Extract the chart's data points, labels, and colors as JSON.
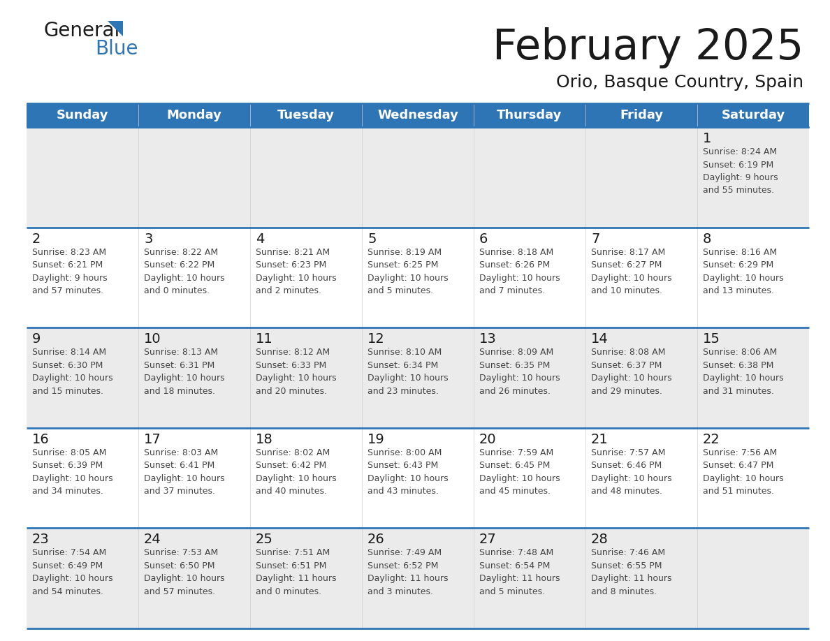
{
  "title": "February 2025",
  "subtitle": "Orio, Basque Country, Spain",
  "header_bg": "#2E75B6",
  "header_text": "#FFFFFF",
  "cell_bg_light": "#EBEBEB",
  "cell_bg_white": "#FFFFFF",
  "grid_line_color": "#2E75B6",
  "day_headers": [
    "Sunday",
    "Monday",
    "Tuesday",
    "Wednesday",
    "Thursday",
    "Friday",
    "Saturday"
  ],
  "title_color": "#1a1a1a",
  "subtitle_color": "#1a1a1a",
  "cell_text_color": "#444444",
  "day_num_color": "#1a1a1a",
  "logo_general_color": "#1a1a1a",
  "logo_blue_color": "#2E75B6",
  "logo_triangle_color": "#2E75B6",
  "calendar_data": [
    [
      null,
      null,
      null,
      null,
      null,
      null,
      {
        "day": 1,
        "sunrise": "8:24 AM",
        "sunset": "6:19 PM",
        "daylight": "9 hours\nand 55 minutes."
      }
    ],
    [
      {
        "day": 2,
        "sunrise": "8:23 AM",
        "sunset": "6:21 PM",
        "daylight": "9 hours\nand 57 minutes."
      },
      {
        "day": 3,
        "sunrise": "8:22 AM",
        "sunset": "6:22 PM",
        "daylight": "10 hours\nand 0 minutes."
      },
      {
        "day": 4,
        "sunrise": "8:21 AM",
        "sunset": "6:23 PM",
        "daylight": "10 hours\nand 2 minutes."
      },
      {
        "day": 5,
        "sunrise": "8:19 AM",
        "sunset": "6:25 PM",
        "daylight": "10 hours\nand 5 minutes."
      },
      {
        "day": 6,
        "sunrise": "8:18 AM",
        "sunset": "6:26 PM",
        "daylight": "10 hours\nand 7 minutes."
      },
      {
        "day": 7,
        "sunrise": "8:17 AM",
        "sunset": "6:27 PM",
        "daylight": "10 hours\nand 10 minutes."
      },
      {
        "day": 8,
        "sunrise": "8:16 AM",
        "sunset": "6:29 PM",
        "daylight": "10 hours\nand 13 minutes."
      }
    ],
    [
      {
        "day": 9,
        "sunrise": "8:14 AM",
        "sunset": "6:30 PM",
        "daylight": "10 hours\nand 15 minutes."
      },
      {
        "day": 10,
        "sunrise": "8:13 AM",
        "sunset": "6:31 PM",
        "daylight": "10 hours\nand 18 minutes."
      },
      {
        "day": 11,
        "sunrise": "8:12 AM",
        "sunset": "6:33 PM",
        "daylight": "10 hours\nand 20 minutes."
      },
      {
        "day": 12,
        "sunrise": "8:10 AM",
        "sunset": "6:34 PM",
        "daylight": "10 hours\nand 23 minutes."
      },
      {
        "day": 13,
        "sunrise": "8:09 AM",
        "sunset": "6:35 PM",
        "daylight": "10 hours\nand 26 minutes."
      },
      {
        "day": 14,
        "sunrise": "8:08 AM",
        "sunset": "6:37 PM",
        "daylight": "10 hours\nand 29 minutes."
      },
      {
        "day": 15,
        "sunrise": "8:06 AM",
        "sunset": "6:38 PM",
        "daylight": "10 hours\nand 31 minutes."
      }
    ],
    [
      {
        "day": 16,
        "sunrise": "8:05 AM",
        "sunset": "6:39 PM",
        "daylight": "10 hours\nand 34 minutes."
      },
      {
        "day": 17,
        "sunrise": "8:03 AM",
        "sunset": "6:41 PM",
        "daylight": "10 hours\nand 37 minutes."
      },
      {
        "day": 18,
        "sunrise": "8:02 AM",
        "sunset": "6:42 PM",
        "daylight": "10 hours\nand 40 minutes."
      },
      {
        "day": 19,
        "sunrise": "8:00 AM",
        "sunset": "6:43 PM",
        "daylight": "10 hours\nand 43 minutes."
      },
      {
        "day": 20,
        "sunrise": "7:59 AM",
        "sunset": "6:45 PM",
        "daylight": "10 hours\nand 45 minutes."
      },
      {
        "day": 21,
        "sunrise": "7:57 AM",
        "sunset": "6:46 PM",
        "daylight": "10 hours\nand 48 minutes."
      },
      {
        "day": 22,
        "sunrise": "7:56 AM",
        "sunset": "6:47 PM",
        "daylight": "10 hours\nand 51 minutes."
      }
    ],
    [
      {
        "day": 23,
        "sunrise": "7:54 AM",
        "sunset": "6:49 PM",
        "daylight": "10 hours\nand 54 minutes."
      },
      {
        "day": 24,
        "sunrise": "7:53 AM",
        "sunset": "6:50 PM",
        "daylight": "10 hours\nand 57 minutes."
      },
      {
        "day": 25,
        "sunrise": "7:51 AM",
        "sunset": "6:51 PM",
        "daylight": "11 hours\nand 0 minutes."
      },
      {
        "day": 26,
        "sunrise": "7:49 AM",
        "sunset": "6:52 PM",
        "daylight": "11 hours\nand 3 minutes."
      },
      {
        "day": 27,
        "sunrise": "7:48 AM",
        "sunset": "6:54 PM",
        "daylight": "11 hours\nand 5 minutes."
      },
      {
        "day": 28,
        "sunrise": "7:46 AM",
        "sunset": "6:55 PM",
        "daylight": "11 hours\nand 8 minutes."
      },
      null
    ]
  ]
}
